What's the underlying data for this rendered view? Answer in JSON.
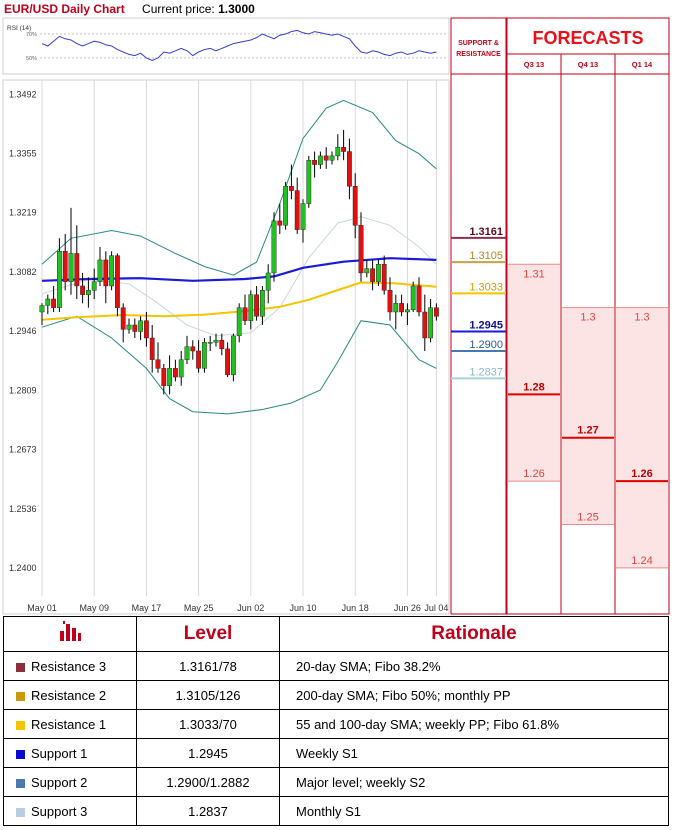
{
  "title": "EUR/USD Daily Chart",
  "current_price_label": "Current price:",
  "current_price": "1.3000",
  "rsi_label": "RSI (14)",
  "rsi_ticks": [
    "70%",
    "50%"
  ],
  "sr_header": "SUPPORT & RESISTANCE",
  "forecasts_header": "FORECASTS",
  "colors": {
    "up": "#22c022",
    "down": "#e01010",
    "sma_blue": "#1a1ad8",
    "sma_yellow": "#f5c400",
    "bollinger": "#2a8a80",
    "forecast_fill": "#fde4e4",
    "forecast_line": "#e00000"
  },
  "chart_data": {
    "type": "candlestick",
    "ylim": [
      1.2335,
      1.3525
    ],
    "y_ticks": [
      "1.3492",
      "1.3355",
      "1.3219",
      "1.3082",
      "1.2946",
      "1.2809",
      "1.2673",
      "1.2536",
      "1.2400"
    ],
    "x_ticks": [
      "May 01",
      "May 09",
      "May 17",
      "May 25",
      "Jun 02",
      "Jun 10",
      "Jun 18",
      "Jun 26",
      "Jul 04"
    ],
    "candles": [
      {
        "o": 1.299,
        "h": 1.301,
        "l": 1.296,
        "c": 1.3005
      },
      {
        "o": 1.3005,
        "h": 1.303,
        "l": 1.2985,
        "c": 1.302
      },
      {
        "o": 1.302,
        "h": 1.305,
        "l": 1.299,
        "c": 1.3
      },
      {
        "o": 1.3,
        "h": 1.316,
        "l": 1.299,
        "c": 1.313
      },
      {
        "o": 1.313,
        "h": 1.317,
        "l": 1.304,
        "c": 1.306
      },
      {
        "o": 1.306,
        "h": 1.323,
        "l": 1.303,
        "c": 1.3125
      },
      {
        "o": 1.3125,
        "h": 1.319,
        "l": 1.302,
        "c": 1.305
      },
      {
        "o": 1.305,
        "h": 1.308,
        "l": 1.301,
        "c": 1.303
      },
      {
        "o": 1.303,
        "h": 1.307,
        "l": 1.3,
        "c": 1.304
      },
      {
        "o": 1.304,
        "h": 1.309,
        "l": 1.302,
        "c": 1.306
      },
      {
        "o": 1.306,
        "h": 1.314,
        "l": 1.305,
        "c": 1.311
      },
      {
        "o": 1.311,
        "h": 1.313,
        "l": 1.301,
        "c": 1.305
      },
      {
        "o": 1.305,
        "h": 1.313,
        "l": 1.304,
        "c": 1.312
      },
      {
        "o": 1.312,
        "h": 1.3125,
        "l": 1.298,
        "c": 1.3
      },
      {
        "o": 1.3,
        "h": 1.301,
        "l": 1.292,
        "c": 1.295
      },
      {
        "o": 1.295,
        "h": 1.2975,
        "l": 1.294,
        "c": 1.296
      },
      {
        "o": 1.296,
        "h": 1.2975,
        "l": 1.293,
        "c": 1.2945
      },
      {
        "o": 1.2945,
        "h": 1.298,
        "l": 1.2925,
        "c": 1.297
      },
      {
        "o": 1.297,
        "h": 1.299,
        "l": 1.291,
        "c": 1.293
      },
      {
        "o": 1.293,
        "h": 1.296,
        "l": 1.285,
        "c": 1.288
      },
      {
        "o": 1.288,
        "h": 1.292,
        "l": 1.285,
        "c": 1.286
      },
      {
        "o": 1.286,
        "h": 1.287,
        "l": 1.28,
        "c": 1.282
      },
      {
        "o": 1.282,
        "h": 1.289,
        "l": 1.28,
        "c": 1.286
      },
      {
        "o": 1.286,
        "h": 1.288,
        "l": 1.283,
        "c": 1.284
      },
      {
        "o": 1.284,
        "h": 1.29,
        "l": 1.282,
        "c": 1.288
      },
      {
        "o": 1.288,
        "h": 1.2935,
        "l": 1.287,
        "c": 1.291
      },
      {
        "o": 1.291,
        "h": 1.2925,
        "l": 1.288,
        "c": 1.29
      },
      {
        "o": 1.29,
        "h": 1.2925,
        "l": 1.285,
        "c": 1.286
      },
      {
        "o": 1.286,
        "h": 1.293,
        "l": 1.285,
        "c": 1.292
      },
      {
        "o": 1.292,
        "h": 1.2935,
        "l": 1.29,
        "c": 1.292
      },
      {
        "o": 1.292,
        "h": 1.294,
        "l": 1.291,
        "c": 1.2925
      },
      {
        "o": 1.2925,
        "h": 1.294,
        "l": 1.289,
        "c": 1.2905
      },
      {
        "o": 1.2905,
        "h": 1.292,
        "l": 1.284,
        "c": 1.2845
      },
      {
        "o": 1.2845,
        "h": 1.294,
        "l": 1.283,
        "c": 1.2935
      },
      {
        "o": 1.2935,
        "h": 1.301,
        "l": 1.292,
        "c": 1.3
      },
      {
        "o": 1.3,
        "h": 1.303,
        "l": 1.296,
        "c": 1.297
      },
      {
        "o": 1.297,
        "h": 1.304,
        "l": 1.295,
        "c": 1.303
      },
      {
        "o": 1.303,
        "h": 1.305,
        "l": 1.297,
        "c": 1.298
      },
      {
        "o": 1.298,
        "h": 1.305,
        "l": 1.296,
        "c": 1.304
      },
      {
        "o": 1.304,
        "h": 1.31,
        "l": 1.301,
        "c": 1.308
      },
      {
        "o": 1.308,
        "h": 1.322,
        "l": 1.306,
        "c": 1.32
      },
      {
        "o": 1.32,
        "h": 1.324,
        "l": 1.317,
        "c": 1.319
      },
      {
        "o": 1.319,
        "h": 1.329,
        "l": 1.318,
        "c": 1.328
      },
      {
        "o": 1.328,
        "h": 1.333,
        "l": 1.325,
        "c": 1.327
      },
      {
        "o": 1.327,
        "h": 1.33,
        "l": 1.317,
        "c": 1.318
      },
      {
        "o": 1.318,
        "h": 1.325,
        "l": 1.315,
        "c": 1.324
      },
      {
        "o": 1.324,
        "h": 1.335,
        "l": 1.323,
        "c": 1.334
      },
      {
        "o": 1.334,
        "h": 1.336,
        "l": 1.33,
        "c": 1.333
      },
      {
        "o": 1.333,
        "h": 1.336,
        "l": 1.332,
        "c": 1.335
      },
      {
        "o": 1.335,
        "h": 1.337,
        "l": 1.332,
        "c": 1.334
      },
      {
        "o": 1.334,
        "h": 1.336,
        "l": 1.333,
        "c": 1.335
      },
      {
        "o": 1.335,
        "h": 1.34,
        "l": 1.334,
        "c": 1.337
      },
      {
        "o": 1.337,
        "h": 1.341,
        "l": 1.334,
        "c": 1.336
      },
      {
        "o": 1.336,
        "h": 1.339,
        "l": 1.325,
        "c": 1.328
      },
      {
        "o": 1.328,
        "h": 1.331,
        "l": 1.316,
        "c": 1.319
      },
      {
        "o": 1.319,
        "h": 1.322,
        "l": 1.306,
        "c": 1.308
      },
      {
        "o": 1.308,
        "h": 1.311,
        "l": 1.307,
        "c": 1.309
      },
      {
        "o": 1.309,
        "h": 1.311,
        "l": 1.304,
        "c": 1.306
      },
      {
        "o": 1.306,
        "h": 1.311,
        "l": 1.305,
        "c": 1.31
      },
      {
        "o": 1.31,
        "h": 1.312,
        "l": 1.303,
        "c": 1.304
      },
      {
        "o": 1.304,
        "h": 1.307,
        "l": 1.297,
        "c": 1.299
      },
      {
        "o": 1.299,
        "h": 1.303,
        "l": 1.295,
        "c": 1.301
      },
      {
        "o": 1.301,
        "h": 1.303,
        "l": 1.298,
        "c": 1.299
      },
      {
        "o": 1.299,
        "h": 1.301,
        "l": 1.296,
        "c": 1.2995
      },
      {
        "o": 1.2995,
        "h": 1.306,
        "l": 1.299,
        "c": 1.305
      },
      {
        "o": 1.305,
        "h": 1.307,
        "l": 1.298,
        "c": 1.299
      },
      {
        "o": 1.299,
        "h": 1.303,
        "l": 1.29,
        "c": 1.293
      },
      {
        "o": 1.293,
        "h": 1.302,
        "l": 1.292,
        "c": 1.3
      },
      {
        "o": 1.3,
        "h": 1.301,
        "l": 1.297,
        "c": 1.298
      }
    ],
    "sma_blue": [
      [
        0,
        1.3062
      ],
      [
        8,
        1.3066
      ],
      [
        17,
        1.3068
      ],
      [
        26,
        1.3062
      ],
      [
        35,
        1.3066
      ],
      [
        40,
        1.3072
      ],
      [
        45,
        1.3092
      ],
      [
        52,
        1.3106
      ],
      [
        60,
        1.3114
      ],
      [
        68,
        1.311
      ]
    ],
    "sma_yellow": [
      [
        0,
        1.2972
      ],
      [
        6,
        1.2978
      ],
      [
        14,
        1.2983
      ],
      [
        21,
        1.298
      ],
      [
        28,
        1.2984
      ],
      [
        35,
        1.2992
      ],
      [
        41,
        1.3002
      ],
      [
        46,
        1.3018
      ],
      [
        50,
        1.3036
      ],
      [
        55,
        1.3058
      ],
      [
        61,
        1.3056
      ],
      [
        68,
        1.3048
      ]
    ],
    "boll_upper": [
      [
        0,
        1.31
      ],
      [
        5,
        1.316
      ],
      [
        12,
        1.3178
      ],
      [
        17,
        1.3165
      ],
      [
        23,
        1.3125
      ],
      [
        28,
        1.3095
      ],
      [
        33,
        1.3075
      ],
      [
        37,
        1.3105
      ],
      [
        41,
        1.324
      ],
      [
        45,
        1.339
      ],
      [
        49,
        1.346
      ],
      [
        52,
        1.3478
      ],
      [
        57,
        1.345
      ],
      [
        61,
        1.3385
      ],
      [
        65,
        1.3355
      ],
      [
        68,
        1.332
      ]
    ],
    "boll_mid": [
      [
        0,
        1.3032
      ],
      [
        8,
        1.3065
      ],
      [
        15,
        1.3055
      ],
      [
        20,
        1.301
      ],
      [
        25,
        1.296
      ],
      [
        30,
        1.2935
      ],
      [
        36,
        1.2942
      ],
      [
        41,
        1.3
      ],
      [
        46,
        1.3115
      ],
      [
        51,
        1.3195
      ],
      [
        55,
        1.321
      ],
      [
        60,
        1.319
      ],
      [
        65,
        1.314
      ],
      [
        68,
        1.31
      ]
    ],
    "boll_lower": [
      [
        0,
        1.2955
      ],
      [
        6,
        1.298
      ],
      [
        12,
        1.293
      ],
      [
        18,
        1.286
      ],
      [
        22,
        1.279
      ],
      [
        26,
        1.276
      ],
      [
        32,
        1.2755
      ],
      [
        38,
        1.2765
      ],
      [
        43,
        1.278
      ],
      [
        48,
        1.281
      ],
      [
        51,
        1.2875
      ],
      [
        55,
        1.297
      ],
      [
        60,
        1.296
      ],
      [
        65,
        1.288
      ],
      [
        68,
        1.286
      ]
    ],
    "rsi": [
      62,
      60,
      64,
      68,
      66,
      65,
      62,
      60,
      62,
      64,
      63,
      61,
      60,
      57,
      55,
      53,
      52,
      54,
      50,
      48,
      50,
      55,
      54,
      56,
      58,
      56,
      52,
      55,
      57,
      58,
      56,
      58,
      60,
      62,
      63,
      64,
      65,
      67,
      70,
      68,
      66,
      69,
      70,
      72,
      73,
      71,
      70,
      72,
      71,
      70,
      69,
      70,
      68,
      66,
      60,
      55,
      54,
      56,
      55,
      53,
      52,
      54,
      55,
      53,
      54,
      56,
      55,
      54,
      55
    ]
  },
  "sr_levels": [
    {
      "label": "1.3161",
      "value": 1.3161,
      "color": "#8b2f4a",
      "text_color": "#5a0a26",
      "bold": true
    },
    {
      "label": "1.3105",
      "value": 1.3105,
      "color": "#c8a04a",
      "text_color": "#b08a20",
      "bold": false
    },
    {
      "label": "1.3033",
      "value": 1.3033,
      "color": "#f5c400",
      "text_color": "#c8a000",
      "bold": false
    },
    {
      "label": "1.2945",
      "value": 1.2945,
      "color": "#1a1ad8",
      "text_color": "#10108a",
      "bold": true
    },
    {
      "label": "1.2900",
      "value": 1.29,
      "color": "#4a78b0",
      "text_color": "#2a5a98",
      "bold": false
    },
    {
      "label": "1.2837",
      "value": 1.2837,
      "color": "#a8d0d8",
      "text_color": "#8ab8c0",
      "bold": false
    }
  ],
  "forecasts": [
    {
      "quarter": "Q3 13",
      "high": 1.31,
      "mid": 1.28,
      "low": 1.26,
      "high_label": "1.31",
      "mid_label": "1.28",
      "low_label": "1.26"
    },
    {
      "quarter": "Q4 13",
      "high": 1.3,
      "mid": 1.27,
      "low": 1.25,
      "high_label": "1.3",
      "mid_label": "1.27",
      "low_label": "1.25"
    },
    {
      "quarter": "Q1 14",
      "high": 1.3,
      "mid": 1.26,
      "low": 1.24,
      "high_label": "1.3",
      "mid_label": "1.26",
      "low_label": "1.24"
    }
  ],
  "table": {
    "headers": [
      "",
      "Level",
      "Rationale"
    ],
    "rows": [
      {
        "name": "Resistance 3",
        "color": "#8b2f3a",
        "level": "1.3161/78",
        "rationale": "20-day SMA; Fibo 38.2%"
      },
      {
        "name": "Resistance 2",
        "color": "#c89a10",
        "level": "1.3105/126",
        "rationale": "200-day SMA; Fibo 50%; monthly PP"
      },
      {
        "name": "Resistance 1",
        "color": "#f5c400",
        "level": "1.3033/70",
        "rationale": "55 and 100-day SMA; weekly PP; Fibo 61.8%"
      },
      {
        "name": "Support 1",
        "color": "#0a0ad0",
        "level": "1.2945",
        "rationale": "Weekly S1"
      },
      {
        "name": "Support 2",
        "color": "#4a78b0",
        "level": "1.2900/1.2882",
        "rationale": "Major level; weekly S2"
      },
      {
        "name": "Support 3",
        "color": "#b8cce4",
        "level": "1.2837",
        "rationale": "Monthly S1"
      }
    ]
  }
}
